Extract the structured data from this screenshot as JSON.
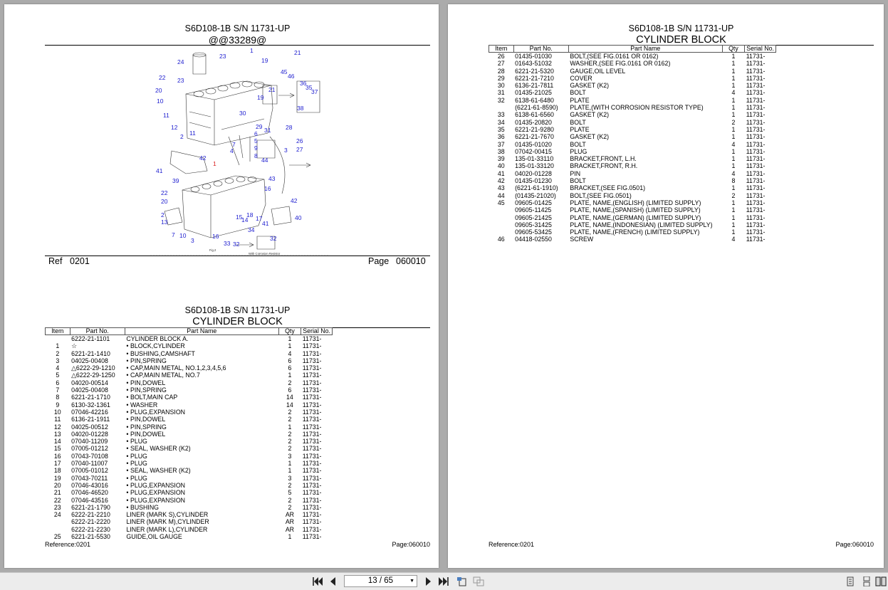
{
  "left_page": {
    "diagram": {
      "model": "S6D108-1B S/N 11731-UP",
      "code": "@@33289@",
      "ref_label": "Ref",
      "ref_value": "0201",
      "page_label": "Page",
      "page_value": "060010",
      "callouts": [
        "1",
        "23",
        "19",
        "21",
        "24",
        "22",
        "23",
        "45",
        "46",
        "36",
        "35",
        "37",
        "20",
        "21",
        "19",
        "10",
        "11",
        "38",
        "12",
        "11",
        "30",
        "29",
        "31",
        "28",
        "2",
        "6",
        "5",
        "4",
        "7",
        "9",
        "8",
        "26",
        "27",
        "3",
        "42",
        "44",
        "41",
        "39",
        "1",
        "43",
        "16",
        "22",
        "20",
        "2",
        "13",
        "15",
        "14",
        "18",
        "17",
        "41",
        "40",
        "42",
        "7",
        "10",
        "3",
        "16",
        "33",
        "32",
        "34",
        "32"
      ],
      "bottom_notes": [
        "Fig.2",
        "With Corrosion Resistor"
      ]
    },
    "list": {
      "model": "S6D108-1B S/N 11731-UP",
      "title": "CYLINDER BLOCK",
      "headers": {
        "item": "Item",
        "part_no": "Part No.",
        "part_name": "Part Name",
        "qty": "Qty",
        "serial": "Serial No."
      },
      "rows": [
        {
          "item": "",
          "part": "6222-21-1101",
          "name": "CYLINDER BLOCK A.",
          "qty": "1",
          "serial": "11731-"
        },
        {
          "item": "1",
          "part": "☆",
          "name": "• BLOCK,CYLINDER",
          "qty": "1",
          "serial": "11731-"
        },
        {
          "item": "2",
          "part": "6221-21-1410",
          "name": "• BUSHING,CAMSHAFT",
          "qty": "4",
          "serial": "11731-"
        },
        {
          "item": "3",
          "part": "04025-00408",
          "name": "• PIN,SPRING",
          "qty": "6",
          "serial": "11731-"
        },
        {
          "item": "4",
          "part": "△6222-29-1210",
          "name": "• CAP,MAIN METAL, NO.1,2,3,4,5,6",
          "qty": "6",
          "serial": "11731-"
        },
        {
          "item": "5",
          "part": "△6222-29-1250",
          "name": "• CAP,MAIN METAL, NO.7",
          "qty": "1",
          "serial": "11731-"
        },
        {
          "item": "6",
          "part": "04020-00514",
          "name": "• PIN,DOWEL",
          "qty": "2",
          "serial": "11731-"
        },
        {
          "item": "7",
          "part": "04025-00408",
          "name": "• PIN,SPRING",
          "qty": "6",
          "serial": "11731-"
        },
        {
          "item": "8",
          "part": "6221-21-1710",
          "name": "• BOLT,MAIN CAP",
          "qty": "14",
          "serial": "11731-"
        },
        {
          "item": "9",
          "part": "6130-32-1361",
          "name": "• WASHER",
          "qty": "14",
          "serial": "11731-"
        },
        {
          "item": "10",
          "part": "07046-42216",
          "name": "• PLUG,EXPANSION",
          "qty": "2",
          "serial": "11731-"
        },
        {
          "item": "11",
          "part": "6136-21-1911",
          "name": "• PIN,DOWEL",
          "qty": "2",
          "serial": "11731-"
        },
        {
          "item": "12",
          "part": "04025-00512",
          "name": "• PIN,SPRING",
          "qty": "1",
          "serial": "11731-"
        },
        {
          "item": "13",
          "part": "04020-01228",
          "name": "• PIN,DOWEL",
          "qty": "2",
          "serial": "11731-"
        },
        {
          "item": "14",
          "part": "07040-11209",
          "name": "• PLUG",
          "qty": "2",
          "serial": "11731-"
        },
        {
          "item": "15",
          "part": "07005-01212",
          "name": "• SEAL, WASHER (K2)",
          "qty": "2",
          "serial": "11731-"
        },
        {
          "item": "16",
          "part": "07043-70108",
          "name": "• PLUG",
          "qty": "3",
          "serial": "11731-"
        },
        {
          "item": "17",
          "part": "07040-11007",
          "name": "• PLUG",
          "qty": "1",
          "serial": "11731-"
        },
        {
          "item": "18",
          "part": "07005-01012",
          "name": "• SEAL, WASHER (K2)",
          "qty": "1",
          "serial": "11731-"
        },
        {
          "item": "19",
          "part": "07043-70211",
          "name": "• PLUG",
          "qty": "3",
          "serial": "11731-"
        },
        {
          "item": "20",
          "part": "07046-43016",
          "name": "• PLUG,EXPANSION",
          "qty": "2",
          "serial": "11731-"
        },
        {
          "item": "21",
          "part": "07046-46520",
          "name": "• PLUG,EXPANSION",
          "qty": "5",
          "serial": "11731-"
        },
        {
          "item": "22",
          "part": "07046-43516",
          "name": "• PLUG,EXPANSION",
          "qty": "2",
          "serial": "11731-"
        },
        {
          "item": "23",
          "part": "6221-21-1790",
          "name": "• BUSHING",
          "qty": "2",
          "serial": "11731-"
        },
        {
          "item": "24",
          "part": "6222-21-2210",
          "name": "LINER (MARK S),CYLINDER",
          "qty": "AR",
          "serial": "11731-"
        },
        {
          "item": "",
          "part": "6222-21-2220",
          "name": "LINER (MARK M),CYLINDER",
          "qty": "AR",
          "serial": "11731-"
        },
        {
          "item": "",
          "part": "6222-21-2230",
          "name": "LINER (MARK L),CYLINDER",
          "qty": "AR",
          "serial": "11731-"
        },
        {
          "item": "25",
          "part": "6221-21-5530",
          "name": "GUIDE,OIL GAUGE",
          "qty": "1",
          "serial": "11731-"
        }
      ],
      "footer_ref": "Reference:0201",
      "footer_page": "Page:060010"
    }
  },
  "right_page": {
    "model": "S6D108-1B S/N 11731-UP",
    "title": "CYLINDER BLOCK",
    "headers": {
      "item": "Item",
      "part_no": "Part No.",
      "part_name": "Part Name",
      "qty": "Qty",
      "serial": "Serial No."
    },
    "rows": [
      {
        "item": "26",
        "part": "01435-01030",
        "name": "BOLT,(SEE FIG.0161 OR 0162)",
        "qty": "1",
        "serial": "11731-"
      },
      {
        "item": "27",
        "part": "01643-51032",
        "name": "WASHER,(SEE FIG.0161 OR 0162)",
        "qty": "1",
        "serial": "11731-"
      },
      {
        "item": "28",
        "part": "6221-21-5320",
        "name": "GAUGE,OIL LEVEL",
        "qty": "1",
        "serial": "11731-"
      },
      {
        "item": "29",
        "part": "6221-21-7210",
        "name": "COVER",
        "qty": "1",
        "serial": "11731-"
      },
      {
        "item": "30",
        "part": "6136-21-7811",
        "name": "GASKET (K2)",
        "qty": "1",
        "serial": "11731-"
      },
      {
        "item": "31",
        "part": "01435-21025",
        "name": "BOLT",
        "qty": "4",
        "serial": "11731-"
      },
      {
        "item": "32",
        "part": "6138-61-6480",
        "name": "PLATE",
        "qty": "1",
        "serial": "11731-"
      },
      {
        "item": "",
        "part": "(6221-61-8590)",
        "name": "PLATE,(WITH CORROSION RESISTOR TYPE)",
        "qty": "1",
        "serial": "11731-"
      },
      {
        "item": "33",
        "part": "6138-61-6560",
        "name": "GASKET (K2)",
        "qty": "1",
        "serial": "11731-"
      },
      {
        "item": "34",
        "part": "01435-20820",
        "name": "BOLT",
        "qty": "2",
        "serial": "11731-"
      },
      {
        "item": "35",
        "part": "6221-21-9280",
        "name": "PLATE",
        "qty": "1",
        "serial": "11731-"
      },
      {
        "item": "36",
        "part": "6221-21-7670",
        "name": "GASKET (K2)",
        "qty": "1",
        "serial": "11731-"
      },
      {
        "item": "37",
        "part": "01435-01020",
        "name": "BOLT",
        "qty": "4",
        "serial": "11731-"
      },
      {
        "item": "38",
        "part": "07042-00415",
        "name": "PLUG",
        "qty": "1",
        "serial": "11731-"
      },
      {
        "item": "39",
        "part": "135-01-33110",
        "name": "BRACKET,FRONT, L.H.",
        "qty": "1",
        "serial": "11731-"
      },
      {
        "item": "40",
        "part": "135-01-33120",
        "name": "BRACKET,FRONT, R.H.",
        "qty": "1",
        "serial": "11731-"
      },
      {
        "item": "41",
        "part": "04020-01228",
        "name": "PIN",
        "qty": "4",
        "serial": "11731-"
      },
      {
        "item": "42",
        "part": "01435-01230",
        "name": "BOLT",
        "qty": "8",
        "serial": "11731-"
      },
      {
        "item": "43",
        "part": "(6221-61-1910)",
        "name": "BRACKET,(SEE FIG.0501)",
        "qty": "1",
        "serial": "11731-"
      },
      {
        "item": "44",
        "part": "(01435-21020)",
        "name": "BOLT,(SEE FIG.0501)",
        "qty": "2",
        "serial": "11731-"
      },
      {
        "item": "45",
        "part": "09605-01425",
        "name": "PLATE, NAME,(ENGLISH) (LIMITED SUPPLY)",
        "qty": "1",
        "serial": "11731-"
      },
      {
        "item": "",
        "part": "09605-11425",
        "name": "PLATE, NAME,(SPANISH) (LIMITED SUPPLY)",
        "qty": "1",
        "serial": "11731-"
      },
      {
        "item": "",
        "part": "09605-21425",
        "name": "PLATE, NAME,(GERMAN) (LIMITED SUPPLY)",
        "qty": "1",
        "serial": "11731-"
      },
      {
        "item": "",
        "part": "09605-31425",
        "name": "PLATE, NAME,(INDONESIAN) (LIMITED SUPPLY)",
        "qty": "1",
        "serial": "11731-"
      },
      {
        "item": "",
        "part": "09605-53425",
        "name": "PLATE, NAME,(FRENCH) (LIMITED SUPPLY)",
        "qty": "1",
        "serial": "11731-"
      },
      {
        "item": "46",
        "part": "04418-02550",
        "name": "SCREW",
        "qty": "4",
        "serial": "11731-"
      }
    ],
    "footer_ref": "Reference:0201",
    "footer_page": "Page:060010"
  },
  "toolbar": {
    "page_indicator": "13 / 65",
    "icons": [
      "first-page-icon",
      "prev-page-icon",
      "next-page-icon",
      "last-page-icon",
      "rotate-icon",
      "fit-width-icon",
      "single-page-icon",
      "continuous-page-icon",
      "two-page-icon"
    ]
  }
}
